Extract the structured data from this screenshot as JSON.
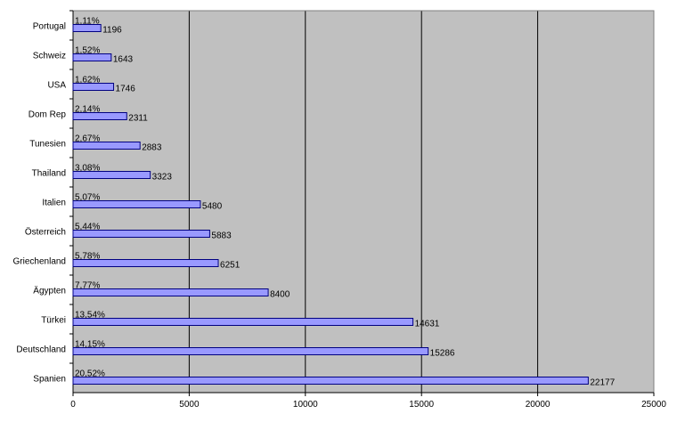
{
  "chart_data": {
    "type": "bar",
    "orientation": "horizontal",
    "categories": [
      "Portugal",
      "Schweiz",
      "USA",
      "Dom Rep",
      "Tunesien",
      "Thailand",
      "Italien",
      "Österreich",
      "Griechenland",
      "Ägypten",
      "Türkei",
      "Deutschland",
      "Spanien"
    ],
    "values": [
      1196,
      1643,
      1746,
      2311,
      2883,
      3323,
      5480,
      5883,
      6251,
      8400,
      14631,
      15286,
      22177
    ],
    "value_labels": [
      "1196",
      "1643",
      "1746",
      "2311",
      "2883",
      "3323",
      "5480",
      "5883",
      "6251",
      "8400",
      "14631",
      "15286",
      "22177"
    ],
    "percent_labels": [
      "1,11%",
      "1,52%",
      "1,62%",
      "2,14%",
      "2,67%",
      "3,08%",
      "5,07%",
      "5,44%",
      "5,78%",
      "7,77%",
      "13,54%",
      "14,15%",
      "20,52%"
    ],
    "xlim": [
      0,
      25000
    ],
    "x_ticks": [
      0,
      5000,
      10000,
      15000,
      20000,
      25000
    ],
    "x_tick_labels": [
      "0",
      "5000",
      "10000",
      "15000",
      "20000",
      "25000"
    ],
    "grid": "vertical",
    "colors": {
      "plot_background": "#c0c0c0",
      "bar_fill": "#9999ff",
      "bar_stroke": "#000080",
      "gridline": "#000000"
    }
  }
}
